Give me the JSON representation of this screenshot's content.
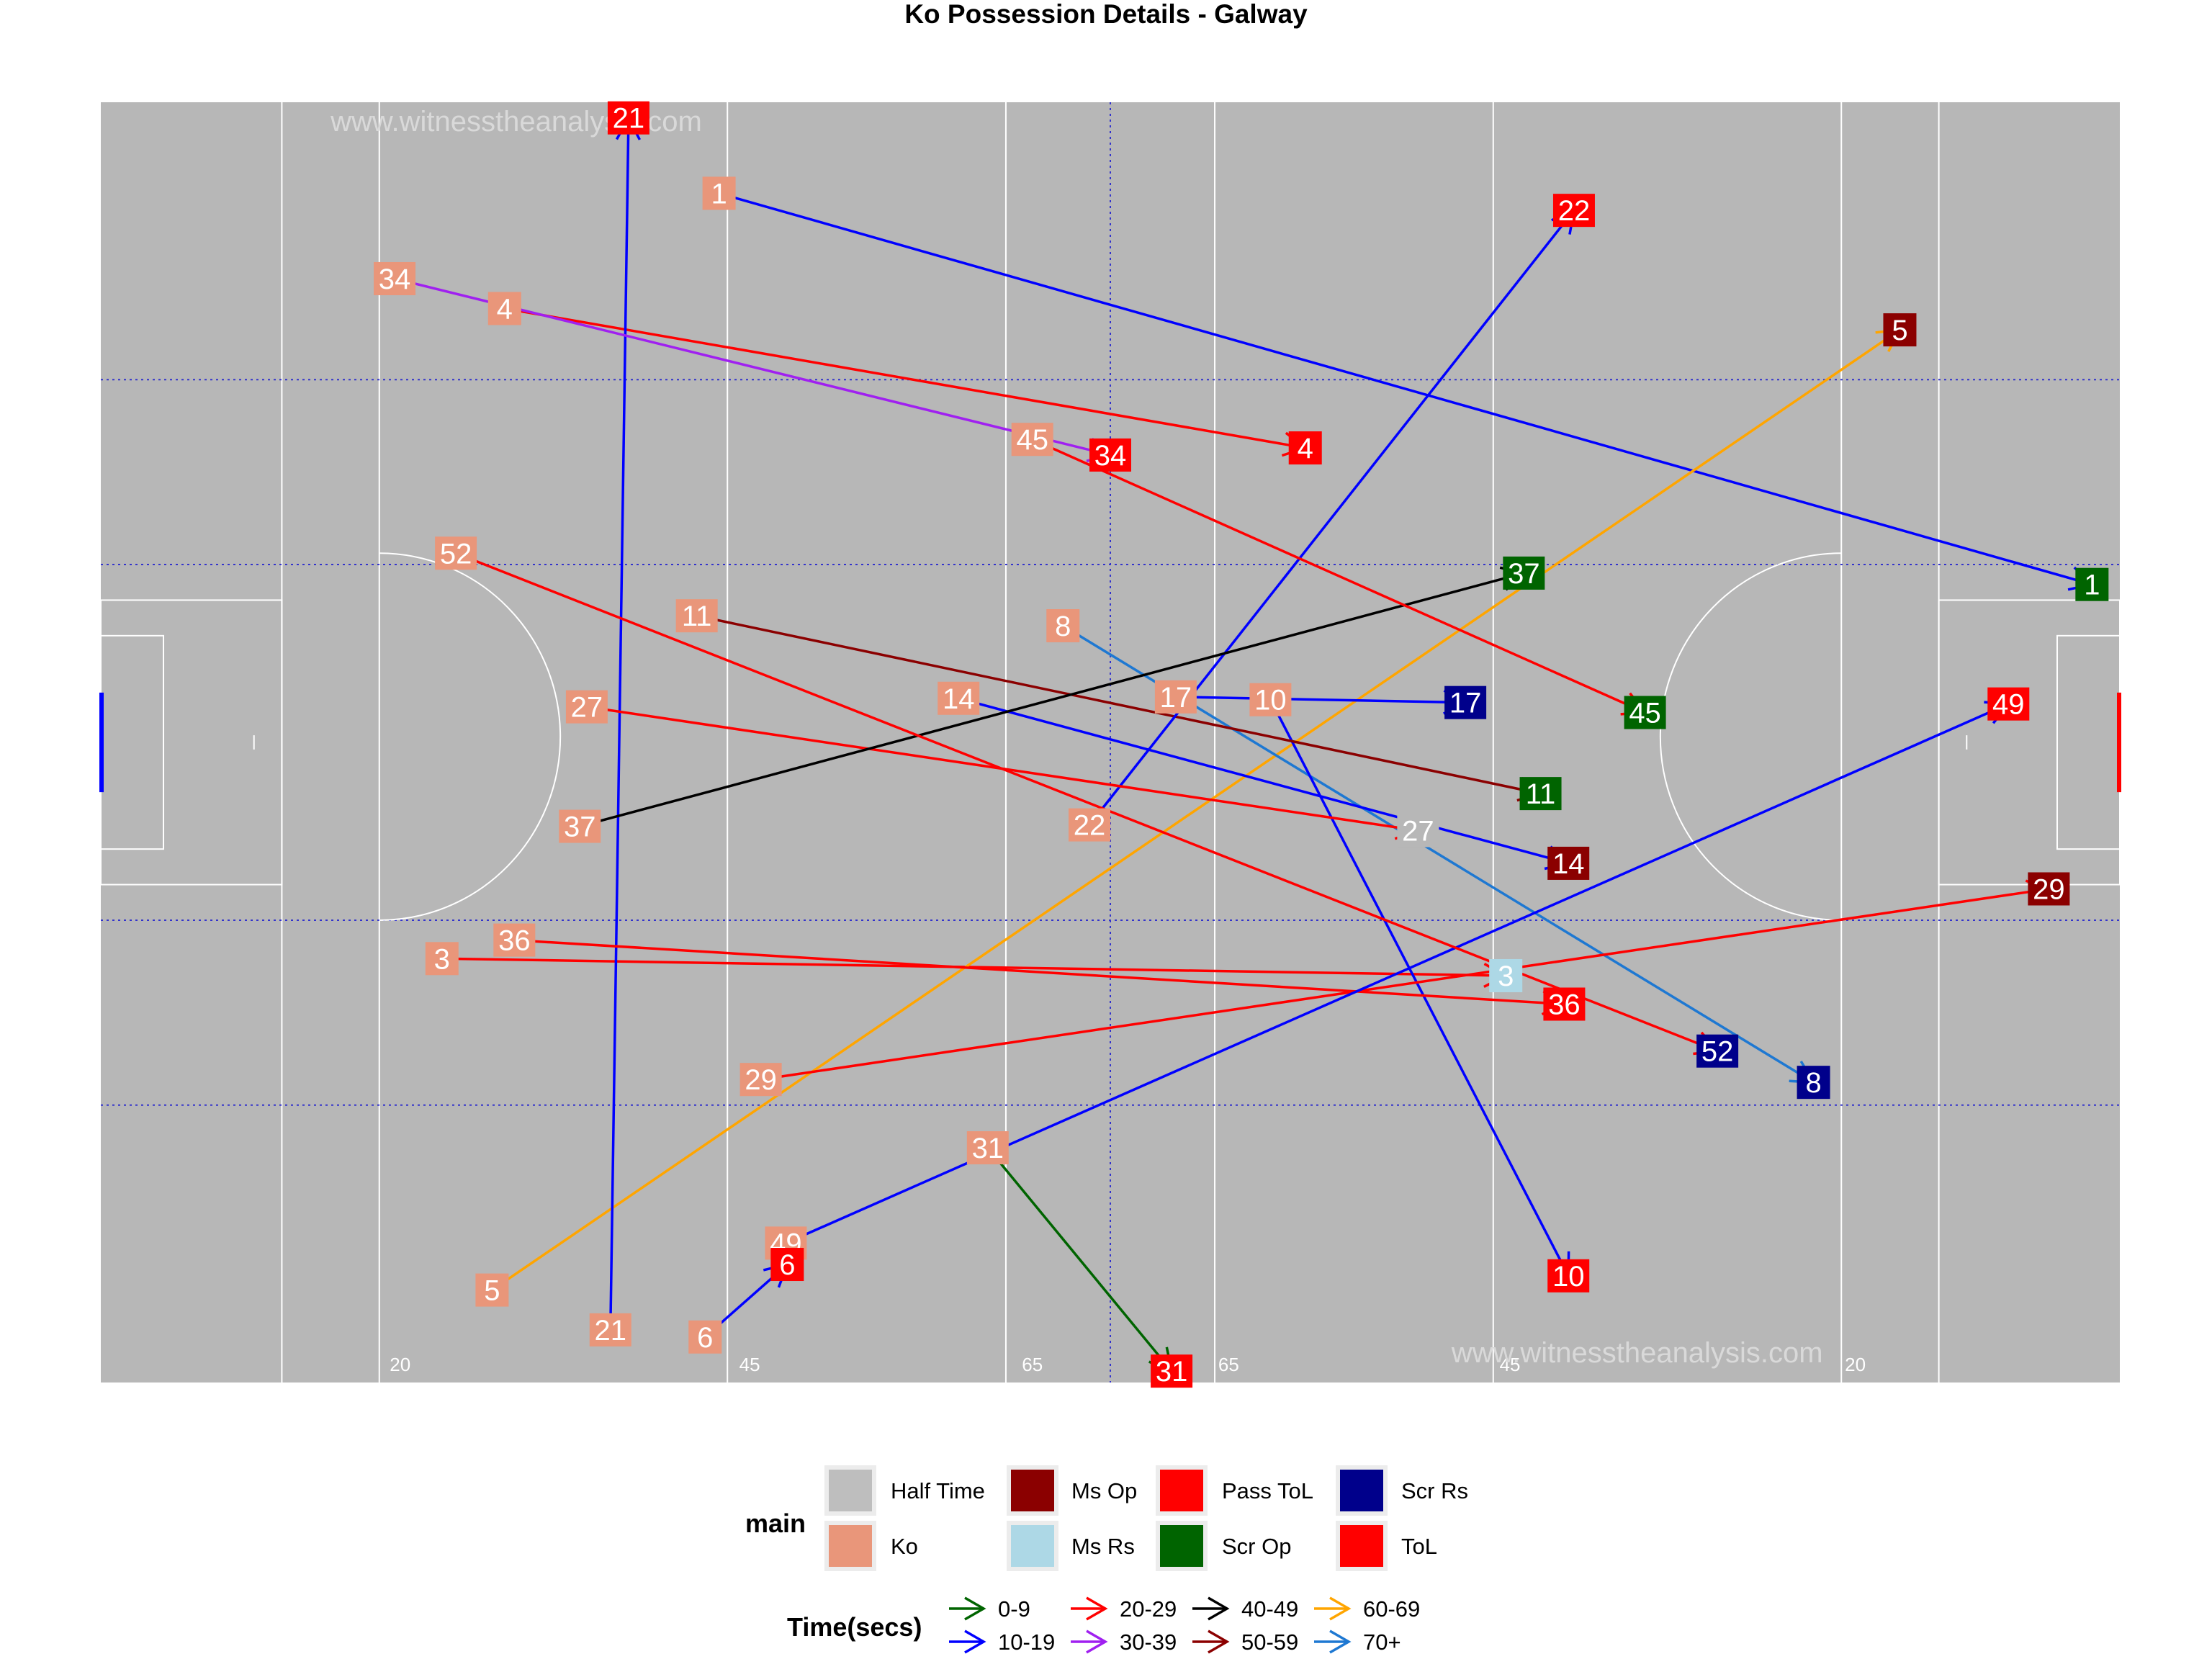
{
  "chart_data": {
    "type": "scatter",
    "title": "Ko Possession Details - Galway",
    "watermark": "www.witnesstheanalysis.com",
    "pitch": {
      "x_range": [
        0,
        145
      ],
      "y_range": [
        0,
        90
      ],
      "colour": "#b7b7b7",
      "line_colour": "#ffffff",
      "distance_markers": [
        "20",
        "45",
        "65",
        "65",
        "45",
        "20"
      ]
    },
    "legend_main": {
      "title": "main",
      "items": [
        {
          "label": "Half Time",
          "colour": "#bebebe"
        },
        {
          "label": "Ko",
          "colour": "#e9967a"
        },
        {
          "label": "Ms Op",
          "colour": "#8b0000"
        },
        {
          "label": "Ms Rs",
          "colour": "#add8e6"
        },
        {
          "label": "Pass ToL",
          "colour": "#ff0000"
        },
        {
          "label": "Scr Op",
          "colour": "#006400"
        },
        {
          "label": "Scr Rs",
          "colour": "#00008b"
        },
        {
          "label": "ToL",
          "colour": "#ff0000"
        }
      ]
    },
    "legend_time": {
      "title": "Time(secs)",
      "items": [
        {
          "label": "0-9",
          "colour": "#006400"
        },
        {
          "label": "10-19",
          "colour": "#0000ff"
        },
        {
          "label": "20-29",
          "colour": "#ff0000"
        },
        {
          "label": "30-39",
          "colour": "#a020f0"
        },
        {
          "label": "40-49",
          "colour": "#000000"
        },
        {
          "label": "50-59",
          "colour": "#8b0000"
        },
        {
          "label": "60-69",
          "colour": "#ffa500"
        },
        {
          "label": "70+",
          "colour": "#1e78d2"
        }
      ]
    },
    "possessions": [
      {
        "id": "1",
        "start": [
          44.4,
          83.6
        ],
        "end": [
          143.0,
          56.1
        ],
        "time": "10-19",
        "outcome": "Scr Op"
      },
      {
        "id": "3",
        "start": [
          24.5,
          29.8
        ],
        "end": [
          100.9,
          28.6
        ],
        "time": "20-29",
        "outcome": "Ms Rs"
      },
      {
        "id": "4",
        "start": [
          29.0,
          75.5
        ],
        "end": [
          86.5,
          65.7
        ],
        "time": "20-29",
        "outcome": "ToL"
      },
      {
        "id": "5",
        "start": [
          28.1,
          6.5
        ],
        "end": [
          129.2,
          74.0
        ],
        "time": "60-69",
        "outcome": "Ms Op"
      },
      {
        "id": "6",
        "start": [
          43.4,
          3.2
        ],
        "end": [
          49.3,
          8.3
        ],
        "time": "10-19",
        "outcome": "ToL"
      },
      {
        "id": "8",
        "start": [
          69.1,
          53.2
        ],
        "end": [
          123.0,
          21.1
        ],
        "time": "70+",
        "outcome": "Scr Rs"
      },
      {
        "id": "10",
        "start": [
          84.0,
          48.0
        ],
        "end": [
          105.4,
          7.5
        ],
        "time": "10-19",
        "outcome": "ToL"
      },
      {
        "id": "11",
        "start": [
          42.8,
          53.9
        ],
        "end": [
          103.4,
          41.4
        ],
        "time": "50-59",
        "outcome": "Scr Op"
      },
      {
        "id": "14",
        "start": [
          61.6,
          48.1
        ],
        "end": [
          105.4,
          36.5
        ],
        "time": "10-19",
        "outcome": "Ms Op"
      },
      {
        "id": "17",
        "start": [
          77.2,
          48.2
        ],
        "end": [
          98.0,
          47.8
        ],
        "time": "10-19",
        "outcome": "Scr Rs"
      },
      {
        "id": "21",
        "start": [
          36.6,
          3.7
        ],
        "end": [
          37.9,
          88.9
        ],
        "time": "10-19",
        "outcome": "ToL"
      },
      {
        "id": "22",
        "start": [
          71.0,
          39.2
        ],
        "end": [
          105.8,
          82.4
        ],
        "time": "10-19",
        "outcome": "ToL"
      },
      {
        "id": "27",
        "start": [
          34.9,
          47.5
        ],
        "end": [
          94.6,
          38.8
        ],
        "time": "20-29",
        "outcome": "Half Time"
      },
      {
        "id": "29",
        "start": [
          47.4,
          21.3
        ],
        "end": [
          139.9,
          34.7
        ],
        "time": "20-29",
        "outcome": "Ms Op"
      },
      {
        "id": "31",
        "start": [
          63.7,
          16.5
        ],
        "end": [
          76.9,
          0.8
        ],
        "time": "0-9",
        "outcome": "ToL"
      },
      {
        "id": "34",
        "start": [
          21.1,
          77.6
        ],
        "end": [
          72.5,
          65.2
        ],
        "time": "30-39",
        "outcome": "ToL"
      },
      {
        "id": "36",
        "start": [
          29.7,
          31.1
        ],
        "end": [
          105.1,
          26.6
        ],
        "time": "20-29",
        "outcome": "ToL"
      },
      {
        "id": "37",
        "start": [
          34.4,
          39.1
        ],
        "end": [
          102.2,
          56.9
        ],
        "time": "40-49",
        "outcome": "Scr Op"
      },
      {
        "id": "45",
        "start": [
          66.9,
          66.3
        ],
        "end": [
          110.9,
          47.1
        ],
        "time": "20-29",
        "outcome": "Scr Op"
      },
      {
        "id": "49",
        "start": [
          49.2,
          9.8
        ],
        "end": [
          137.0,
          47.7
        ],
        "time": "10-19",
        "outcome": "ToL"
      },
      {
        "id": "52",
        "start": [
          25.5,
          58.3
        ],
        "end": [
          116.1,
          23.3
        ],
        "time": "20-29",
        "outcome": "Scr Rs"
      }
    ]
  }
}
